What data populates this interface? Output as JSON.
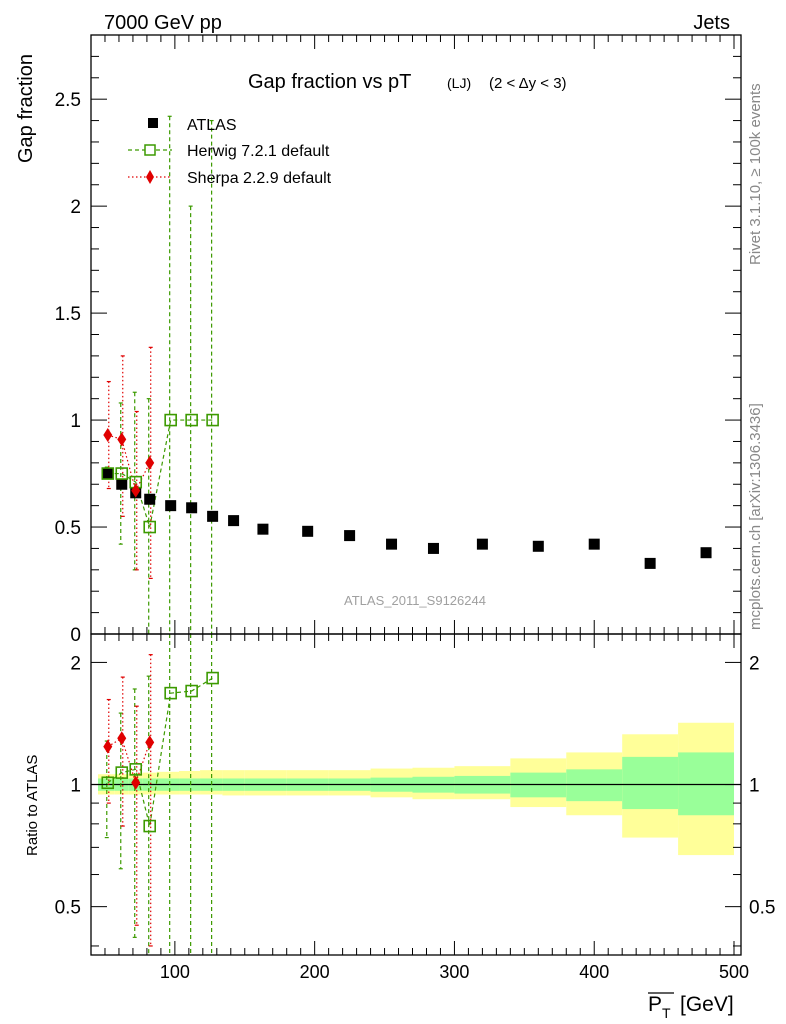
{
  "header": {
    "energy_label": "7000 GeV pp",
    "category_label": "Jets",
    "rivet_label": "Rivet 3.1.10, ≥ 100k events",
    "mcplots_label": "mcplots.cern.ch [arXiv:1306.3436]",
    "analysis_label": "ATLAS_2011_S9126244"
  },
  "chart_data": [
    {
      "type": "scatter",
      "panel": "main",
      "title": "Gap fraction vs pT",
      "title_sub": "(LJ)",
      "title_cond": "(2 < Δy < 3)",
      "ylabel": "Gap fraction",
      "xlim": [
        40,
        505
      ],
      "ylim": [
        0,
        2.8
      ],
      "yticks": [
        0,
        0.5,
        1,
        1.5,
        2,
        2.5
      ],
      "ytick_labels": [
        "0",
        "0.5",
        "1",
        "1.5",
        "2",
        "2.5"
      ],
      "legend_position": "top-left",
      "series": [
        {
          "name": "ATLAS",
          "color": "#000000",
          "marker": "filled-square",
          "x": [
            52,
            62,
            72,
            82,
            97,
            112,
            127,
            142,
            163,
            195,
            225,
            255,
            285,
            320,
            360,
            400,
            440,
            480
          ],
          "y": [
            0.75,
            0.7,
            0.66,
            0.63,
            0.6,
            0.59,
            0.55,
            0.53,
            0.49,
            0.48,
            0.46,
            0.42,
            0.4,
            0.42,
            0.41,
            0.42,
            0.33,
            0.38
          ]
        },
        {
          "name": "Herwig 7.2.1 default",
          "color": "#3c9a00",
          "marker": "open-square",
          "line": "dashed",
          "x": [
            52,
            62,
            72,
            82,
            97,
            112,
            127
          ],
          "y": [
            0.75,
            0.75,
            0.71,
            0.5,
            1.0,
            1.0,
            1.0
          ],
          "err_low": [
            0.75,
            0.42,
            0.3,
            0.0,
            0.0,
            0.0,
            0.0
          ],
          "err_high": [
            0.78,
            1.08,
            1.13,
            1.1,
            2.42,
            2.0,
            2.4
          ]
        },
        {
          "name": "Sherpa 2.2.9 default",
          "color": "#e00000",
          "marker": "filled-diamond",
          "line": "dotted",
          "x": [
            52,
            62,
            72,
            82
          ],
          "y": [
            0.93,
            0.91,
            0.67,
            0.8
          ],
          "err_low": [
            0.68,
            0.55,
            0.3,
            0.26
          ],
          "err_high": [
            1.18,
            1.3,
            1.04,
            1.34
          ]
        }
      ]
    },
    {
      "type": "scatter",
      "panel": "ratio",
      "ylabel": "Ratio to ATLAS",
      "xlabel": "P_T [GeV]",
      "xlim": [
        40,
        505
      ],
      "ylim": [
        0.38,
        2.35
      ],
      "yscale": "log",
      "xticks": [
        100,
        200,
        300,
        400,
        500
      ],
      "xtick_labels": [
        "100",
        "200",
        "300",
        "400",
        "500"
      ],
      "yticks": [
        0.5,
        1,
        2
      ],
      "ytick_labels": [
        "0.5",
        "1",
        "2"
      ],
      "bands": {
        "x_edges": [
          45,
          57,
          67,
          77,
          87,
          103,
          118,
          134,
          150,
          180,
          210,
          240,
          270,
          300,
          340,
          380,
          420,
          460,
          500
        ],
        "stat_low": [
          0.965,
          0.965,
          0.965,
          0.965,
          0.965,
          0.965,
          0.965,
          0.965,
          0.965,
          0.965,
          0.965,
          0.96,
          0.955,
          0.95,
          0.93,
          0.91,
          0.87,
          0.84
        ],
        "stat_high": [
          1.035,
          1.035,
          1.035,
          1.035,
          1.035,
          1.035,
          1.035,
          1.035,
          1.035,
          1.035,
          1.035,
          1.04,
          1.045,
          1.05,
          1.07,
          1.09,
          1.17,
          1.2
        ],
        "tot_low": [
          0.945,
          0.945,
          0.945,
          0.945,
          0.945,
          0.945,
          0.945,
          0.94,
          0.94,
          0.94,
          0.94,
          0.93,
          0.92,
          0.92,
          0.88,
          0.84,
          0.74,
          0.67
        ],
        "tot_high": [
          1.06,
          1.06,
          1.065,
          1.07,
          1.075,
          1.08,
          1.085,
          1.085,
          1.085,
          1.085,
          1.085,
          1.095,
          1.1,
          1.11,
          1.16,
          1.2,
          1.33,
          1.42
        ]
      },
      "series": [
        {
          "name": "Herwig 7.2.1 default",
          "color": "#3c9a00",
          "x": [
            52,
            62,
            72,
            82,
            97,
            112,
            127
          ],
          "y": [
            1.01,
            1.07,
            1.09,
            0.79,
            1.68,
            1.7,
            1.83
          ],
          "err_low": [
            0.74,
            0.62,
            0.42,
            0.3,
            0.3,
            0.3,
            0.3
          ],
          "err_high": [
            1.28,
            1.5,
            1.72,
            1.85,
            2.4,
            2.4,
            2.4
          ]
        },
        {
          "name": "Sherpa 2.2.9 default",
          "color": "#e00000",
          "x": [
            52,
            62,
            72,
            82
          ],
          "y": [
            1.24,
            1.3,
            1.01,
            1.27
          ],
          "err_low": [
            0.9,
            0.79,
            0.45,
            0.4
          ],
          "err_high": [
            1.62,
            1.84,
            1.56,
            2.09
          ]
        }
      ]
    }
  ]
}
